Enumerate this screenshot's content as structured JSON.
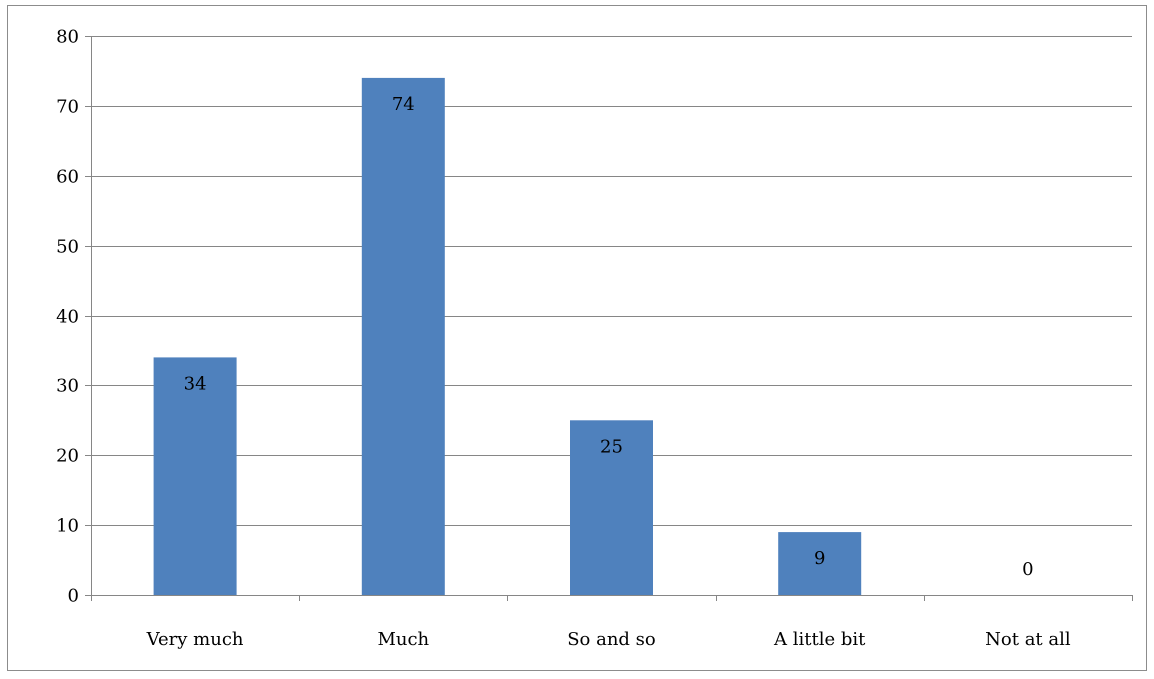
{
  "chart_data": {
    "type": "bar",
    "categories": [
      "Very much",
      "Much",
      "So and so",
      "A little bit",
      "Not at all"
    ],
    "values": [
      34,
      74,
      25,
      9,
      0
    ],
    "data_labels": [
      "34",
      "74",
      "25",
      "9",
      "0"
    ],
    "ylim": [
      0,
      80
    ],
    "yticks": [
      "0",
      "10",
      "20",
      "30",
      "40",
      "50",
      "60",
      "70",
      "80"
    ],
    "grid": true,
    "bar_color": "#4f81bd",
    "grid_color": "#868686",
    "legend": "none"
  }
}
